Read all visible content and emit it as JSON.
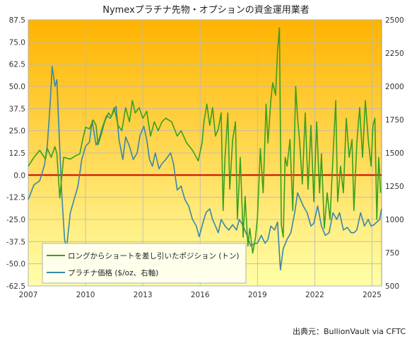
{
  "chart_data": {
    "type": "line",
    "title": "Nymexプラチナ先物・オプションの資金運用業者",
    "source": "出典元：BullionVault via CFTC",
    "x_ticks": [
      "2007",
      "2010",
      "2013",
      "2016",
      "2019",
      "2022",
      "2025"
    ],
    "x_range": [
      2007.0,
      2025.5
    ],
    "left_axis": {
      "ticks": [
        "87.5",
        "75.0",
        "62.5",
        "50.0",
        "37.5",
        "25.0",
        "12.5",
        "0.0",
        "-12.5",
        "-25.0",
        "-37.5",
        "-50.0",
        "-62.5"
      ],
      "range": [
        -62.5,
        87.5
      ]
    },
    "right_axis": {
      "ticks": [
        "2500",
        "2250",
        "2000",
        "1750",
        "1500",
        "1250",
        "1000",
        "750",
        "500"
      ],
      "range": [
        500,
        2500
      ]
    },
    "zero_line_color": "#cc0000",
    "background_gradient": [
      "#ffb300",
      "#ffffa8"
    ],
    "grid": true,
    "legend_position": "bottom-left",
    "series": [
      {
        "name": "ロングからショートを差し引いたポジション (トン)",
        "axis": "left",
        "color": "#3aa01c",
        "points": [
          [
            2007.0,
            5
          ],
          [
            2007.3,
            10
          ],
          [
            2007.6,
            14
          ],
          [
            2007.9,
            9
          ],
          [
            2008.0,
            15
          ],
          [
            2008.2,
            10
          ],
          [
            2008.4,
            16
          ],
          [
            2008.5,
            12
          ],
          [
            2008.65,
            -13
          ],
          [
            2008.85,
            10
          ],
          [
            2009.2,
            9
          ],
          [
            2009.5,
            11
          ],
          [
            2009.7,
            12
          ],
          [
            2009.85,
            20
          ],
          [
            2010.0,
            27
          ],
          [
            2010.2,
            26
          ],
          [
            2010.4,
            31
          ],
          [
            2010.55,
            28
          ],
          [
            2010.65,
            17
          ],
          [
            2010.8,
            22
          ],
          [
            2011.0,
            30
          ],
          [
            2011.2,
            35
          ],
          [
            2011.35,
            33
          ],
          [
            2011.5,
            38
          ],
          [
            2011.7,
            28
          ],
          [
            2011.9,
            25
          ],
          [
            2012.1,
            38
          ],
          [
            2012.3,
            30
          ],
          [
            2012.45,
            42
          ],
          [
            2012.6,
            35
          ],
          [
            2012.8,
            38
          ],
          [
            2013.0,
            32
          ],
          [
            2013.2,
            36
          ],
          [
            2013.4,
            22
          ],
          [
            2013.6,
            30
          ],
          [
            2013.8,
            25
          ],
          [
            2014.0,
            30
          ],
          [
            2014.2,
            32
          ],
          [
            2014.5,
            30
          ],
          [
            2014.8,
            22
          ],
          [
            2015.0,
            25
          ],
          [
            2015.3,
            18
          ],
          [
            2015.6,
            14
          ],
          [
            2015.9,
            8
          ],
          [
            2016.1,
            18
          ],
          [
            2016.2,
            30
          ],
          [
            2016.35,
            40
          ],
          [
            2016.5,
            28
          ],
          [
            2016.65,
            38
          ],
          [
            2016.8,
            22
          ],
          [
            2016.95,
            26
          ],
          [
            2017.1,
            35
          ],
          [
            2017.2,
            -20
          ],
          [
            2017.3,
            10
          ],
          [
            2017.45,
            35
          ],
          [
            2017.55,
            -8
          ],
          [
            2017.7,
            20
          ],
          [
            2017.85,
            30
          ],
          [
            2017.95,
            -25
          ],
          [
            2018.1,
            10
          ],
          [
            2018.25,
            -35
          ],
          [
            2018.35,
            -12
          ],
          [
            2018.5,
            -40
          ],
          [
            2018.6,
            -30
          ],
          [
            2018.75,
            -44
          ],
          [
            2018.9,
            -35
          ],
          [
            2019.0,
            -24
          ],
          [
            2019.15,
            15
          ],
          [
            2019.3,
            -10
          ],
          [
            2019.45,
            40
          ],
          [
            2019.55,
            18
          ],
          [
            2019.7,
            42
          ],
          [
            2019.8,
            52
          ],
          [
            2019.95,
            45
          ],
          [
            2020.05,
            70
          ],
          [
            2020.15,
            83
          ],
          [
            2020.25,
            -28
          ],
          [
            2020.35,
            -35
          ],
          [
            2020.45,
            10
          ],
          [
            2020.55,
            5
          ],
          [
            2020.7,
            20
          ],
          [
            2020.85,
            -20
          ],
          [
            2021.0,
            50
          ],
          [
            2021.1,
            32
          ],
          [
            2021.2,
            20
          ],
          [
            2021.35,
            -5
          ],
          [
            2021.5,
            35
          ],
          [
            2021.65,
            -8
          ],
          [
            2021.8,
            28
          ],
          [
            2021.95,
            -15
          ],
          [
            2022.1,
            30
          ],
          [
            2022.25,
            -10
          ],
          [
            2022.35,
            12
          ],
          [
            2022.5,
            -30
          ],
          [
            2022.65,
            -10
          ],
          [
            2022.8,
            -25
          ],
          [
            2022.95,
            10
          ],
          [
            2023.1,
            42
          ],
          [
            2023.2,
            -15
          ],
          [
            2023.35,
            5
          ],
          [
            2023.5,
            -10
          ],
          [
            2023.65,
            32
          ],
          [
            2023.8,
            10
          ],
          [
            2023.95,
            20
          ],
          [
            2024.05,
            -20
          ],
          [
            2024.2,
            18
          ],
          [
            2024.35,
            38
          ],
          [
            2024.5,
            10
          ],
          [
            2024.65,
            42
          ],
          [
            2024.8,
            20
          ],
          [
            2024.95,
            5
          ],
          [
            2025.05,
            28
          ],
          [
            2025.15,
            32
          ],
          [
            2025.25,
            -25
          ],
          [
            2025.35,
            10
          ],
          [
            2025.45,
            -10
          ]
        ]
      },
      {
        "name": "プラチナ価格 ($/oz、右軸)",
        "axis": "right",
        "color": "#3a86a8",
        "points": [
          [
            2007.0,
            1150
          ],
          [
            2007.3,
            1260
          ],
          [
            2007.6,
            1290
          ],
          [
            2007.85,
            1410
          ],
          [
            2008.0,
            1560
          ],
          [
            2008.15,
            1880
          ],
          [
            2008.25,
            2150
          ],
          [
            2008.4,
            2000
          ],
          [
            2008.5,
            2050
          ],
          [
            2008.6,
            1700
          ],
          [
            2008.75,
            1200
          ],
          [
            2008.9,
            850
          ],
          [
            2009.0,
            780
          ],
          [
            2009.2,
            1050
          ],
          [
            2009.4,
            1150
          ],
          [
            2009.6,
            1250
          ],
          [
            2009.8,
            1450
          ],
          [
            2010.0,
            1550
          ],
          [
            2010.2,
            1580
          ],
          [
            2010.35,
            1740
          ],
          [
            2010.55,
            1560
          ],
          [
            2010.7,
            1600
          ],
          [
            2010.9,
            1700
          ],
          [
            2011.1,
            1780
          ],
          [
            2011.3,
            1760
          ],
          [
            2011.6,
            1850
          ],
          [
            2011.75,
            1600
          ],
          [
            2011.95,
            1450
          ],
          [
            2012.1,
            1620
          ],
          [
            2012.3,
            1550
          ],
          [
            2012.5,
            1450
          ],
          [
            2012.7,
            1500
          ],
          [
            2012.85,
            1630
          ],
          [
            2013.05,
            1700
          ],
          [
            2013.2,
            1600
          ],
          [
            2013.35,
            1450
          ],
          [
            2013.5,
            1400
          ],
          [
            2013.65,
            1500
          ],
          [
            2013.85,
            1380
          ],
          [
            2014.0,
            1420
          ],
          [
            2014.2,
            1450
          ],
          [
            2014.45,
            1500
          ],
          [
            2014.6,
            1420
          ],
          [
            2014.8,
            1220
          ],
          [
            2015.0,
            1250
          ],
          [
            2015.2,
            1150
          ],
          [
            2015.4,
            1100
          ],
          [
            2015.6,
            1000
          ],
          [
            2015.8,
            950
          ],
          [
            2015.95,
            870
          ],
          [
            2016.1,
            950
          ],
          [
            2016.3,
            1050
          ],
          [
            2016.5,
            1080
          ],
          [
            2016.65,
            1000
          ],
          [
            2016.8,
            950
          ],
          [
            2016.95,
            900
          ],
          [
            2017.1,
            1000
          ],
          [
            2017.3,
            950
          ],
          [
            2017.5,
            920
          ],
          [
            2017.7,
            960
          ],
          [
            2017.9,
            920
          ],
          [
            2018.05,
            1000
          ],
          [
            2018.25,
            950
          ],
          [
            2018.45,
            880
          ],
          [
            2018.65,
            800
          ],
          [
            2018.85,
            820
          ],
          [
            2019.0,
            820
          ],
          [
            2019.2,
            880
          ],
          [
            2019.4,
            820
          ],
          [
            2019.55,
            850
          ],
          [
            2019.7,
            950
          ],
          [
            2019.9,
            920
          ],
          [
            2020.05,
            980
          ],
          [
            2020.2,
            620
          ],
          [
            2020.35,
            780
          ],
          [
            2020.55,
            850
          ],
          [
            2020.75,
            900
          ],
          [
            2020.95,
            1050
          ],
          [
            2021.1,
            1200
          ],
          [
            2021.25,
            1150
          ],
          [
            2021.4,
            1100
          ],
          [
            2021.6,
            1050
          ],
          [
            2021.8,
            950
          ],
          [
            2021.95,
            970
          ],
          [
            2022.15,
            1100
          ],
          [
            2022.35,
            950
          ],
          [
            2022.55,
            880
          ],
          [
            2022.75,
            900
          ],
          [
            2022.95,
            1050
          ],
          [
            2023.15,
            1000
          ],
          [
            2023.3,
            1050
          ],
          [
            2023.5,
            920
          ],
          [
            2023.7,
            940
          ],
          [
            2023.9,
            900
          ],
          [
            2024.05,
            900
          ],
          [
            2024.2,
            920
          ],
          [
            2024.4,
            1050
          ],
          [
            2024.6,
            950
          ],
          [
            2024.8,
            1000
          ],
          [
            2024.95,
            950
          ],
          [
            2025.1,
            960
          ],
          [
            2025.25,
            980
          ],
          [
            2025.4,
            1000
          ],
          [
            2025.5,
            1080
          ]
        ]
      }
    ]
  }
}
